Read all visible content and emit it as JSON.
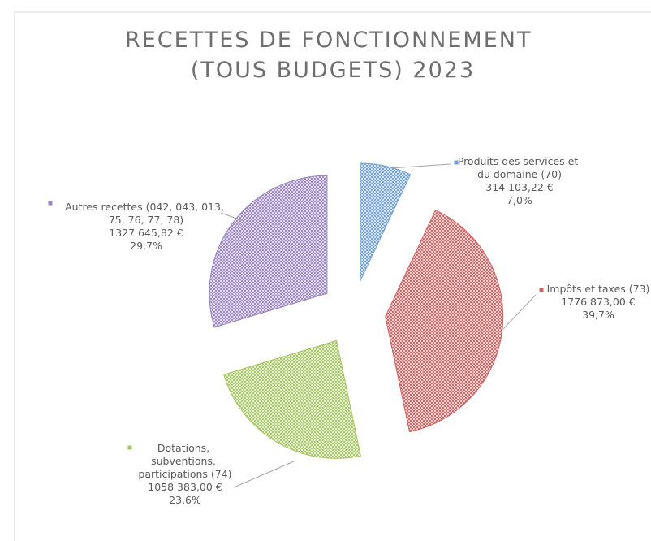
{
  "chart_data": {
    "type": "pie",
    "title": "RECETTES DE FONCTIONNEMENT (TOUS BUDGETS) 2023",
    "categories": [
      "Produits des services et du domaine (70)",
      "Impôts et taxes (73)",
      "Dotations, subventions, participations (74)",
      "Autres recettes (042, 043, 013, 75, 76, 77, 78)"
    ],
    "values": [
      314103.22,
      1776873.0,
      1058383.0,
      1327645.82
    ],
    "value_labels": [
      "314 103,22 €",
      "1776 873,00 €",
      "1058 383,00 €",
      "1327 645,82 €"
    ],
    "percents": [
      7.0,
      39.7,
      23.6,
      29.7
    ],
    "percent_labels": [
      "7,0%",
      "39,7%",
      "23,6%",
      "29,7%"
    ],
    "colors": [
      "#6f9fd8",
      "#d06060",
      "#a6c662",
      "#9a84c0"
    ]
  }
}
